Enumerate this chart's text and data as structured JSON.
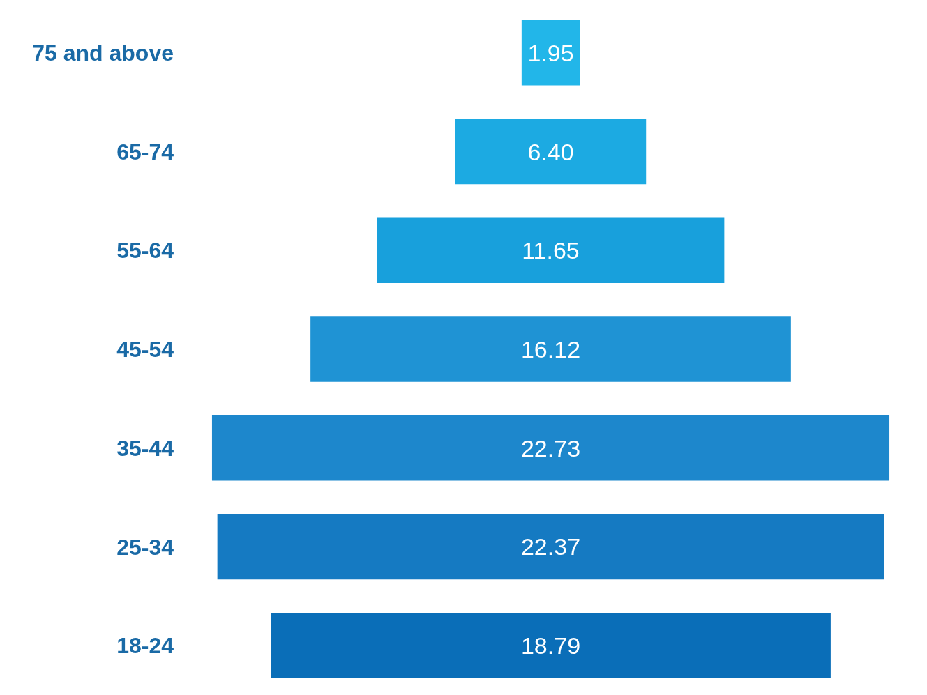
{
  "chart_data": {
    "type": "other",
    "categories": [
      "75 and above",
      "65-74",
      "55-64",
      "45-54",
      "35-44",
      "25-34",
      "18-24"
    ],
    "values": [
      1.95,
      6.4,
      11.65,
      16.12,
      22.73,
      22.37,
      18.79
    ],
    "value_labels": [
      "1.95",
      "6.40",
      "11.65",
      "16.12",
      "22.73",
      "22.37",
      "18.79"
    ],
    "colors": [
      "#22b6e9",
      "#1caae2",
      "#18a0dc",
      "#1f93d4",
      "#1d87cc",
      "#157ac2",
      "#0a6eb8"
    ]
  }
}
